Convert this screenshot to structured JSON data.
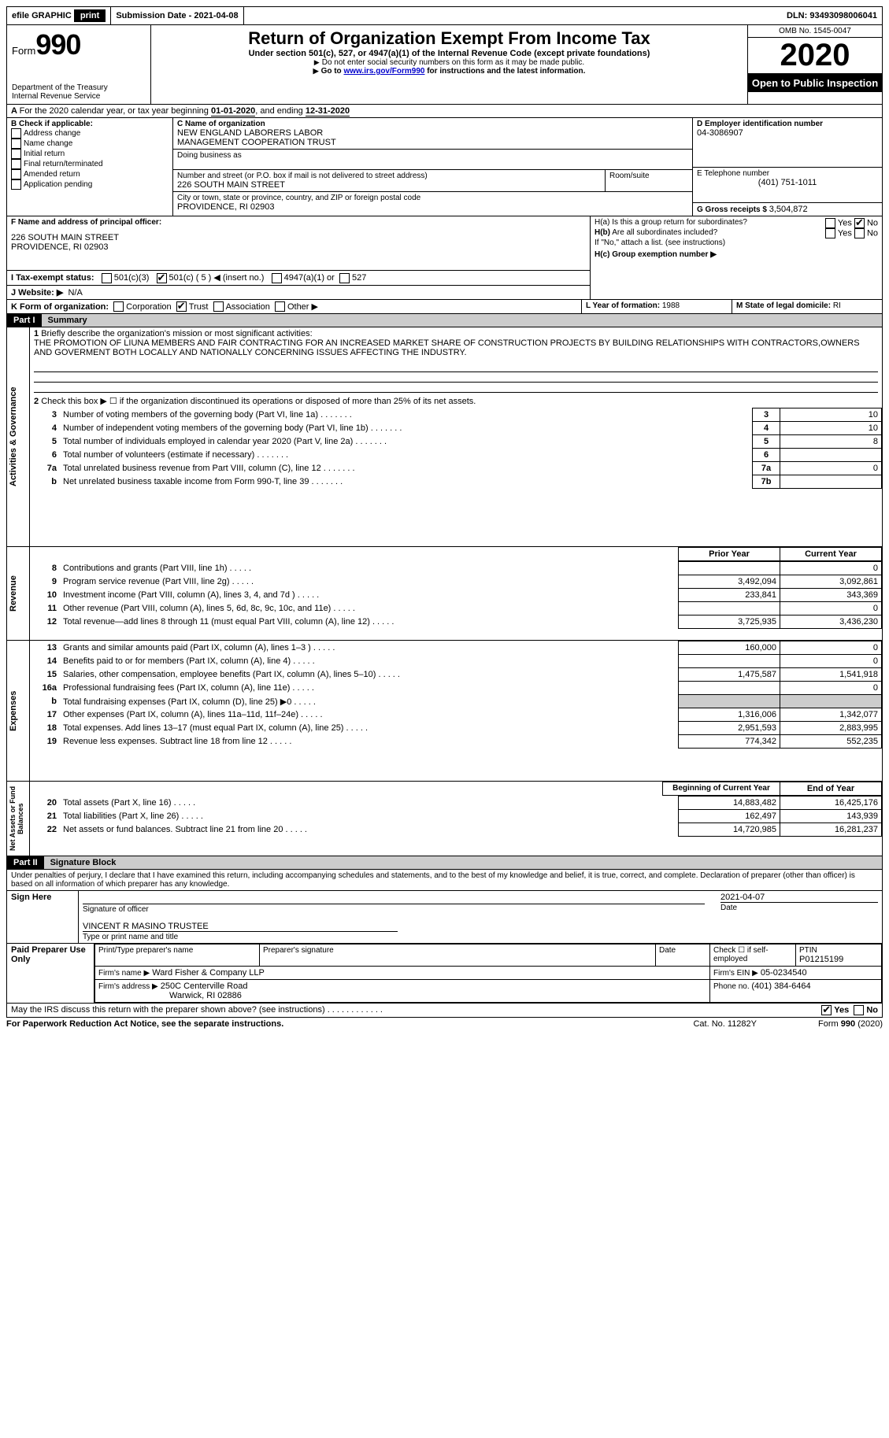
{
  "topbar": {
    "efile": "efile GRAPHIC",
    "print": "print",
    "sub_label": "Submission Date - ",
    "sub_date": "2021-04-08",
    "dln_label": "DLN: ",
    "dln": "93493098006041"
  },
  "header": {
    "form_word": "Form",
    "form_num": "990",
    "dept1": "Department of the Treasury",
    "dept2": "Internal Revenue Service",
    "title": "Return of Organization Exempt From Income Tax",
    "subtitle": "Under section 501(c), 527, or 4947(a)(1) of the Internal Revenue Code (except private foundations)",
    "note1": "Do not enter social security numbers on this form as it may be made public.",
    "note2_pre": "Go to ",
    "note2_link": "www.irs.gov/Form990",
    "note2_post": " for instructions and the latest information.",
    "omb": "OMB No. 1545-0047",
    "year": "2020",
    "open": "Open to Public Inspection"
  },
  "lineA": {
    "text_pre": "For the 2020 calendar year, or tax year beginning ",
    "begin": "01-01-2020",
    "mid": ", and ending ",
    "end": "12-31-2020"
  },
  "boxB": {
    "title": "B Check if applicable:",
    "opts": [
      "Address change",
      "Name change",
      "Initial return",
      "Final return/terminated",
      "Amended return",
      "Application pending"
    ]
  },
  "boxC": {
    "label": "C Name of organization",
    "name1": "NEW ENGLAND LABORERS LABOR",
    "name2": "MANAGEMENT COOPERATION TRUST",
    "dba": "Doing business as",
    "addr_label": "Number and street (or P.O. box if mail is not delivered to street address)",
    "room": "Room/suite",
    "addr": "226 SOUTH MAIN STREET",
    "city_label": "City or town, state or province, country, and ZIP or foreign postal code",
    "city": "PROVIDENCE, RI  02903"
  },
  "boxD": {
    "label": "D Employer identification number",
    "val": "04-3086907"
  },
  "boxE": {
    "label": "E Telephone number",
    "val": "(401) 751-1011"
  },
  "boxG": {
    "label": "G Gross receipts $ ",
    "val": "3,504,872"
  },
  "boxF": {
    "label": "F Name and address of principal officer:",
    "l1": "226 SOUTH MAIN STREET",
    "l2": "PROVIDENCE, RI  02903"
  },
  "boxH": {
    "a": "H(a)  Is this a group return for subordinates?",
    "b": "Are all subordinates included?",
    "b2": "If \"No,\" attach a list. (see instructions)",
    "c": "H(c)  Group exemption number ▶",
    "yes": "Yes",
    "no": "No"
  },
  "lineI": {
    "label": "I  Tax-exempt status:",
    "o1": "501(c)(3)",
    "o2": "501(c) ( 5 ) ◀ (insert no.)",
    "o3": "4947(a)(1) or",
    "o4": "527"
  },
  "lineJ": {
    "label": "J  Website: ▶",
    "val": "N/A"
  },
  "lineK": {
    "label": "K Form of organization:",
    "opts": [
      "Corporation",
      "Trust",
      "Association",
      "Other ▶"
    ],
    "checked": 1
  },
  "lineL": {
    "label": "L Year of formation: ",
    "val": "1988"
  },
  "lineM": {
    "label": "M State of legal domicile: ",
    "val": "RI"
  },
  "part1": {
    "num": "Part I",
    "title": "Summary",
    "q1": "Briefly describe the organization's mission or most significant activities:",
    "mission": "THE PROMOTION OF LIUNA MEMBERS AND FAIR CONTRACTING FOR AN INCREASED MARKET SHARE OF CONSTRUCTION PROJECTS BY BUILDING RELATIONSHIPS WITH CONTRACTORS,OWNERS AND GOVERMENT BOTH LOCALLY AND NATIONALLY CONCERNING ISSUES AFFECTING THE INDUSTRY.",
    "q2": "Check this box ▶ ☐  if the organization discontinued its operations or disposed of more than 25% of its net assets.",
    "rows_gov": [
      {
        "n": "3",
        "t": "Number of voting members of the governing body (Part VI, line 1a)",
        "b": "3",
        "v": "10"
      },
      {
        "n": "4",
        "t": "Number of independent voting members of the governing body (Part VI, line 1b)",
        "b": "4",
        "v": "10"
      },
      {
        "n": "5",
        "t": "Total number of individuals employed in calendar year 2020 (Part V, line 2a)",
        "b": "5",
        "v": "8"
      },
      {
        "n": "6",
        "t": "Total number of volunteers (estimate if necessary)",
        "b": "6",
        "v": ""
      },
      {
        "n": "7a",
        "t": "Total unrelated business revenue from Part VIII, column (C), line 12",
        "b": "7a",
        "v": "0"
      },
      {
        "n": "b",
        "t": "Net unrelated business taxable income from Form 990-T, line 39",
        "b": "7b",
        "v": ""
      }
    ],
    "col_prior": "Prior Year",
    "col_curr": "Current Year",
    "rows_rev": [
      {
        "n": "8",
        "t": "Contributions and grants (Part VIII, line 1h)",
        "p": "",
        "c": "0"
      },
      {
        "n": "9",
        "t": "Program service revenue (Part VIII, line 2g)",
        "p": "3,492,094",
        "c": "3,092,861"
      },
      {
        "n": "10",
        "t": "Investment income (Part VIII, column (A), lines 3, 4, and 7d )",
        "p": "233,841",
        "c": "343,369"
      },
      {
        "n": "11",
        "t": "Other revenue (Part VIII, column (A), lines 5, 6d, 8c, 9c, 10c, and 11e)",
        "p": "",
        "c": "0"
      },
      {
        "n": "12",
        "t": "Total revenue—add lines 8 through 11 (must equal Part VIII, column (A), line 12)",
        "p": "3,725,935",
        "c": "3,436,230"
      }
    ],
    "rows_exp": [
      {
        "n": "13",
        "t": "Grants and similar amounts paid (Part IX, column (A), lines 1–3 )",
        "p": "160,000",
        "c": "0"
      },
      {
        "n": "14",
        "t": "Benefits paid to or for members (Part IX, column (A), line 4)",
        "p": "",
        "c": "0"
      },
      {
        "n": "15",
        "t": "Salaries, other compensation, employee benefits (Part IX, column (A), lines 5–10)",
        "p": "1,475,587",
        "c": "1,541,918"
      },
      {
        "n": "16a",
        "t": "Professional fundraising fees (Part IX, column (A), line 11e)",
        "p": "",
        "c": "0"
      },
      {
        "n": "b",
        "t": "Total fundraising expenses (Part IX, column (D), line 25) ▶0",
        "p": "shade",
        "c": "shade"
      },
      {
        "n": "17",
        "t": "Other expenses (Part IX, column (A), lines 11a–11d, 11f–24e)",
        "p": "1,316,006",
        "c": "1,342,077"
      },
      {
        "n": "18",
        "t": "Total expenses. Add lines 13–17 (must equal Part IX, column (A), line 25)",
        "p": "2,951,593",
        "c": "2,883,995"
      },
      {
        "n": "19",
        "t": "Revenue less expenses. Subtract line 18 from line 12",
        "p": "774,342",
        "c": "552,235"
      }
    ],
    "col_beg": "Beginning of Current Year",
    "col_end": "End of Year",
    "rows_net": [
      {
        "n": "20",
        "t": "Total assets (Part X, line 16)",
        "p": "14,883,482",
        "c": "16,425,176"
      },
      {
        "n": "21",
        "t": "Total liabilities (Part X, line 26)",
        "p": "162,497",
        "c": "143,939"
      },
      {
        "n": "22",
        "t": "Net assets or fund balances. Subtract line 21 from line 20",
        "p": "14,720,985",
        "c": "16,281,237"
      }
    ],
    "vlabels": [
      "Activities & Governance",
      "Revenue",
      "Expenses",
      "Net Assets or Fund Balances"
    ]
  },
  "part2": {
    "num": "Part II",
    "title": "Signature Block",
    "decl": "Under penalties of perjury, I declare that I have examined this return, including accompanying schedules and statements, and to the best of my knowledge and belief, it is true, correct, and complete. Declaration of preparer (other than officer) is based on all information of which preparer has any knowledge.",
    "sign_here": "Sign Here",
    "sig_officer": "Signature of officer",
    "date": "Date",
    "sig_date": "2021-04-07",
    "name_title_val": "VINCENT R MASINO  TRUSTEE",
    "name_title": "Type or print name and title",
    "paid": "Paid Preparer Use Only",
    "pp_name": "Print/Type preparer's name",
    "pp_sig": "Preparer's signature",
    "pp_date": "Date",
    "pp_check": "Check ☐ if self-employed",
    "ptin_l": "PTIN",
    "ptin": "P01215199",
    "firm_name_l": "Firm's name   ▶",
    "firm_name": "Ward Fisher & Company LLP",
    "firm_ein_l": "Firm's EIN ▶",
    "firm_ein": "05-0234540",
    "firm_addr_l": "Firm's address ▶",
    "firm_addr1": "250C Centerville Road",
    "firm_addr2": "Warwick, RI  02886",
    "phone_l": "Phone no. ",
    "phone": "(401) 384-6464",
    "discuss": "May the IRS discuss this return with the preparer shown above? (see instructions)",
    "yes": "Yes",
    "no": "No"
  },
  "footer": {
    "l": "For Paperwork Reduction Act Notice, see the separate instructions.",
    "m": "Cat. No. 11282Y",
    "r": "Form 990 (2020)"
  }
}
